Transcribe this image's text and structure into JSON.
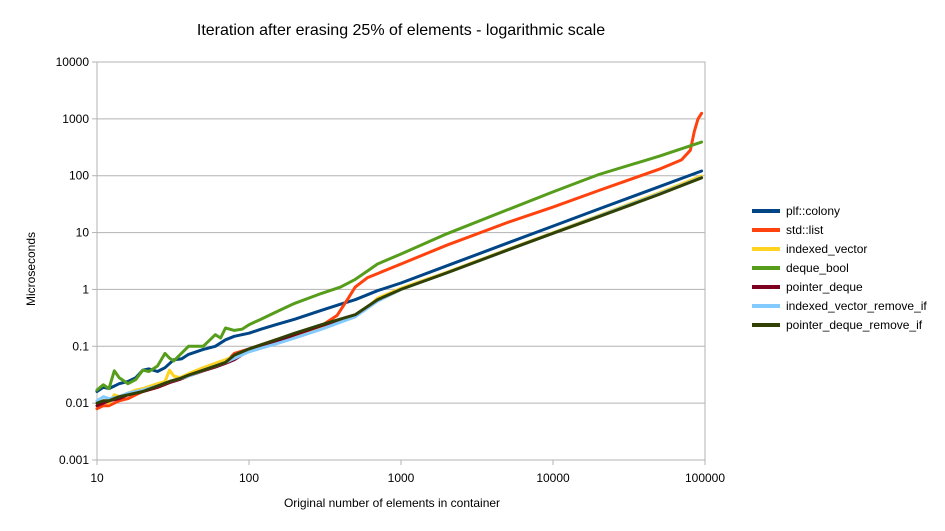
{
  "chart_data": {
    "type": "line",
    "title": "Iteration after erasing 25% of elements - logarithmic scale",
    "xlabel": "Original number of elements in container",
    "ylabel": "Microseconds",
    "x_scale": "log",
    "y_scale": "log",
    "xlim": [
      10,
      100000
    ],
    "ylim": [
      0.001,
      10000
    ],
    "x_ticks": [
      "10",
      "100",
      "1000",
      "10000",
      "100000"
    ],
    "y_ticks": [
      "10000",
      "1000",
      "100",
      "10",
      "1",
      "0.1",
      "0.01",
      "0.001"
    ],
    "grid": "horizontal",
    "legend_position": "right",
    "series": [
      {
        "name": "plf::colony",
        "color": "#004586",
        "points": [
          [
            10,
            0.016
          ],
          [
            11,
            0.019
          ],
          [
            12,
            0.018
          ],
          [
            14,
            0.022
          ],
          [
            16,
            0.024
          ],
          [
            18,
            0.028
          ],
          [
            20,
            0.038
          ],
          [
            22,
            0.04
          ],
          [
            25,
            0.036
          ],
          [
            28,
            0.042
          ],
          [
            32,
            0.058
          ],
          [
            36,
            0.06
          ],
          [
            40,
            0.072
          ],
          [
            50,
            0.088
          ],
          [
            60,
            0.1
          ],
          [
            70,
            0.13
          ],
          [
            80,
            0.15
          ],
          [
            100,
            0.17
          ],
          [
            120,
            0.2
          ],
          [
            150,
            0.24
          ],
          [
            200,
            0.3
          ],
          [
            300,
            0.43
          ],
          [
            400,
            0.55
          ],
          [
            500,
            0.66
          ],
          [
            700,
            0.95
          ],
          [
            1000,
            1.3
          ],
          [
            2000,
            2.6
          ],
          [
            5000,
            6.5
          ],
          [
            10000,
            13
          ],
          [
            20000,
            26
          ],
          [
            50000,
            64
          ],
          [
            95000,
            121
          ]
        ]
      },
      {
        "name": "std::list",
        "color": "#ff420e",
        "points": [
          [
            10,
            0.008
          ],
          [
            11,
            0.009
          ],
          [
            12,
            0.009
          ],
          [
            14,
            0.011
          ],
          [
            16,
            0.012
          ],
          [
            18,
            0.014
          ],
          [
            20,
            0.016
          ],
          [
            25,
            0.019
          ],
          [
            30,
            0.023
          ],
          [
            35,
            0.027
          ],
          [
            40,
            0.032
          ],
          [
            50,
            0.04
          ],
          [
            60,
            0.046
          ],
          [
            70,
            0.052
          ],
          [
            80,
            0.075
          ],
          [
            100,
            0.09
          ],
          [
            150,
            0.13
          ],
          [
            200,
            0.16
          ],
          [
            300,
            0.23
          ],
          [
            380,
            0.35
          ],
          [
            450,
            0.7
          ],
          [
            500,
            1.1
          ],
          [
            600,
            1.6
          ],
          [
            700,
            1.9
          ],
          [
            1000,
            2.8
          ],
          [
            2000,
            6
          ],
          [
            5000,
            15
          ],
          [
            10000,
            28
          ],
          [
            20000,
            55
          ],
          [
            50000,
            130
          ],
          [
            70000,
            190
          ],
          [
            80000,
            280
          ],
          [
            85000,
            600
          ],
          [
            90000,
            1000
          ],
          [
            95000,
            1250
          ]
        ]
      },
      {
        "name": "indexed_vector",
        "color": "#ffd320",
        "points": [
          [
            10,
            0.009
          ],
          [
            11,
            0.011
          ],
          [
            12,
            0.01
          ],
          [
            13,
            0.014
          ],
          [
            14,
            0.013
          ],
          [
            16,
            0.015
          ],
          [
            18,
            0.017
          ],
          [
            20,
            0.018
          ],
          [
            25,
            0.022
          ],
          [
            28,
            0.024
          ],
          [
            30,
            0.038
          ],
          [
            32,
            0.03
          ],
          [
            35,
            0.028
          ],
          [
            40,
            0.033
          ],
          [
            50,
            0.042
          ],
          [
            70,
            0.058
          ],
          [
            100,
            0.085
          ],
          [
            150,
            0.12
          ],
          [
            200,
            0.15
          ],
          [
            300,
            0.22
          ],
          [
            400,
            0.28
          ],
          [
            500,
            0.34
          ],
          [
            600,
            0.48
          ],
          [
            700,
            0.7
          ],
          [
            1000,
            1.05
          ],
          [
            2000,
            2
          ],
          [
            5000,
            5
          ],
          [
            10000,
            10
          ],
          [
            20000,
            20
          ],
          [
            50000,
            50
          ],
          [
            95000,
            99
          ]
        ]
      },
      {
        "name": "deque_bool",
        "color": "#579d1c",
        "points": [
          [
            10,
            0.017
          ],
          [
            11,
            0.021
          ],
          [
            12,
            0.018
          ],
          [
            13,
            0.037
          ],
          [
            14,
            0.028
          ],
          [
            16,
            0.022
          ],
          [
            18,
            0.026
          ],
          [
            20,
            0.038
          ],
          [
            22,
            0.036
          ],
          [
            25,
            0.045
          ],
          [
            28,
            0.075
          ],
          [
            30,
            0.062
          ],
          [
            32,
            0.055
          ],
          [
            35,
            0.07
          ],
          [
            40,
            0.1
          ],
          [
            45,
            0.1
          ],
          [
            50,
            0.1
          ],
          [
            60,
            0.16
          ],
          [
            65,
            0.14
          ],
          [
            70,
            0.21
          ],
          [
            80,
            0.19
          ],
          [
            90,
            0.2
          ],
          [
            100,
            0.24
          ],
          [
            120,
            0.3
          ],
          [
            150,
            0.4
          ],
          [
            180,
            0.5
          ],
          [
            200,
            0.57
          ],
          [
            300,
            0.85
          ],
          [
            400,
            1.1
          ],
          [
            500,
            1.5
          ],
          [
            600,
            2.1
          ],
          [
            700,
            2.8
          ],
          [
            1000,
            4.2
          ],
          [
            2000,
            9.5
          ],
          [
            5000,
            25
          ],
          [
            10000,
            52
          ],
          [
            20000,
            105
          ],
          [
            50000,
            220
          ],
          [
            95000,
            390
          ]
        ]
      },
      {
        "name": "pointer_deque",
        "color": "#7e0021",
        "points": [
          [
            10,
            0.009
          ],
          [
            11,
            0.01
          ],
          [
            12,
            0.011
          ],
          [
            14,
            0.012
          ],
          [
            16,
            0.014
          ],
          [
            18,
            0.015
          ],
          [
            20,
            0.016
          ],
          [
            25,
            0.019
          ],
          [
            30,
            0.023
          ],
          [
            35,
            0.026
          ],
          [
            40,
            0.03
          ],
          [
            50,
            0.037
          ],
          [
            60,
            0.043
          ],
          [
            70,
            0.05
          ],
          [
            80,
            0.058
          ],
          [
            100,
            0.085
          ],
          [
            150,
            0.12
          ],
          [
            200,
            0.16
          ],
          [
            300,
            0.23
          ],
          [
            500,
            0.35
          ]
        ]
      },
      {
        "name": "indexed_vector_remove_if",
        "color": "#83caff",
        "points": [
          [
            10,
            0.011
          ],
          [
            11,
            0.013
          ],
          [
            12,
            0.012
          ],
          [
            14,
            0.013
          ],
          [
            16,
            0.015
          ],
          [
            20,
            0.017
          ],
          [
            25,
            0.02
          ],
          [
            30,
            0.024
          ],
          [
            40,
            0.03
          ],
          [
            50,
            0.038
          ],
          [
            70,
            0.052
          ],
          [
            100,
            0.08
          ],
          [
            150,
            0.11
          ],
          [
            200,
            0.14
          ],
          [
            300,
            0.2
          ],
          [
            500,
            0.33
          ],
          [
            700,
            0.62
          ],
          [
            1000,
            1
          ],
          [
            2000,
            1.95
          ],
          [
            5000,
            4.9
          ],
          [
            10000,
            9.8
          ],
          [
            20000,
            19.5
          ],
          [
            50000,
            48
          ],
          [
            95000,
            93
          ]
        ]
      },
      {
        "name": "pointer_deque_remove_if",
        "color": "#314004",
        "points": [
          [
            10,
            0.01
          ],
          [
            11,
            0.011
          ],
          [
            12,
            0.011
          ],
          [
            14,
            0.013
          ],
          [
            16,
            0.014
          ],
          [
            18,
            0.015
          ],
          [
            20,
            0.016
          ],
          [
            25,
            0.02
          ],
          [
            30,
            0.024
          ],
          [
            35,
            0.027
          ],
          [
            40,
            0.031
          ],
          [
            50,
            0.038
          ],
          [
            60,
            0.045
          ],
          [
            70,
            0.052
          ],
          [
            80,
            0.07
          ],
          [
            100,
            0.09
          ],
          [
            150,
            0.13
          ],
          [
            200,
            0.17
          ],
          [
            300,
            0.24
          ],
          [
            500,
            0.36
          ],
          [
            700,
            0.66
          ],
          [
            1000,
            1
          ],
          [
            2000,
            1.95
          ],
          [
            5000,
            4.9
          ],
          [
            10000,
            9.7
          ],
          [
            20000,
            19
          ],
          [
            50000,
            47
          ],
          [
            95000,
            92
          ]
        ]
      }
    ]
  }
}
